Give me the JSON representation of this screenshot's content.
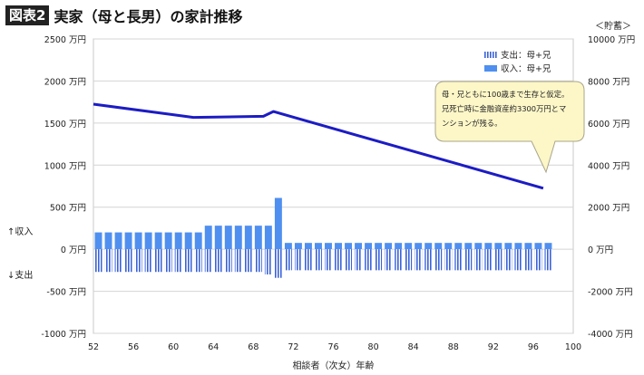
{
  "figure": {
    "label": "図表2",
    "title": "実家（母と長男）の家計推移"
  },
  "chart_data": {
    "type": "bar",
    "xlabel": "相談者（次女）年齢",
    "x_ticks": [
      52,
      56,
      60,
      64,
      68,
      72,
      76,
      80,
      84,
      88,
      92,
      96,
      100
    ],
    "xlim": [
      52,
      100
    ],
    "ylim_left": [
      -1000,
      2500
    ],
    "ylim_right": [
      -4000,
      10000
    ],
    "y_ticks_left": [
      {
        "v": 2500,
        "t": "2500 万円"
      },
      {
        "v": 2000,
        "t": "2000 万円"
      },
      {
        "v": 1500,
        "t": "1500 万円"
      },
      {
        "v": 1000,
        "t": "1000 万円"
      },
      {
        "v": 500,
        "t": "500 万円"
      },
      {
        "v": 0,
        "t": "0 万円"
      },
      {
        "v": -500,
        "t": "-500 万円"
      },
      {
        "v": -1000,
        "t": "-1000 万円"
      }
    ],
    "y_ticks_right": [
      {
        "v": 10000,
        "t": "10000 万円"
      },
      {
        "v": 8000,
        "t": "8000 万円"
      },
      {
        "v": 6000,
        "t": "6000 万円"
      },
      {
        "v": 4000,
        "t": "4000 万円"
      },
      {
        "v": 2000,
        "t": "2000 万円"
      },
      {
        "v": 0,
        "t": "0 万円"
      },
      {
        "v": -2000,
        "t": "-2000 万円"
      },
      {
        "v": -4000,
        "t": "-4000 万円"
      }
    ],
    "right_axis_label": "＜貯蓄＞",
    "left_side_labels": {
      "income": "↑収入",
      "expense": "↓支出"
    },
    "legend": {
      "position": "top-right",
      "expense": "支出：母+兄",
      "income": "収入：母+兄"
    },
    "annotation": {
      "lines": [
        "母・兄ともに100歳まで生存と仮定。",
        "兄死亡時に金融資産約3300万円とマ",
        "ンションが残る。"
      ]
    },
    "ages": [
      52,
      53,
      54,
      55,
      56,
      57,
      58,
      59,
      60,
      61,
      62,
      63,
      64,
      65,
      66,
      67,
      68,
      69,
      70,
      71,
      72,
      73,
      74,
      75,
      76,
      77,
      78,
      79,
      80,
      81,
      82,
      83,
      84,
      85,
      86,
      87,
      88,
      89,
      90,
      91,
      92,
      93,
      94,
      95,
      96,
      97
    ],
    "series": [
      {
        "name": "収入：母+兄",
        "kind": "bar",
        "axis": "left",
        "values": [
          200,
          200,
          200,
          200,
          200,
          200,
          200,
          200,
          200,
          200,
          200,
          280,
          280,
          280,
          280,
          280,
          280,
          280,
          610,
          75,
          75,
          75,
          75,
          75,
          75,
          75,
          75,
          75,
          75,
          75,
          75,
          75,
          75,
          75,
          75,
          75,
          75,
          75,
          75,
          75,
          75,
          75,
          75,
          75,
          75,
          75
        ]
      },
      {
        "name": "支出：母+兄",
        "kind": "bar",
        "axis": "left",
        "values": [
          -270,
          -270,
          -270,
          -270,
          -270,
          -270,
          -270,
          -270,
          -270,
          -270,
          -270,
          -270,
          -270,
          -270,
          -270,
          -270,
          -270,
          -300,
          -340,
          -250,
          -250,
          -250,
          -250,
          -250,
          -250,
          -250,
          -250,
          -250,
          -250,
          -250,
          -250,
          -250,
          -250,
          -250,
          -250,
          -250,
          -250,
          -250,
          -250,
          -250,
          -250,
          -250,
          -250,
          -250,
          -250,
          -250
        ]
      },
      {
        "name": "貯蓄",
        "kind": "line",
        "axis": "right",
        "color": "#1f1fbf",
        "points": [
          [
            52,
            6900
          ],
          [
            62,
            6270
          ],
          [
            69,
            6320
          ],
          [
            70,
            6550
          ],
          [
            97,
            2900
          ]
        ]
      }
    ],
    "colors": {
      "income": "#4f8ff0",
      "expense": "#3a62d6",
      "line": "#1c1cc4"
    },
    "grid": true
  }
}
